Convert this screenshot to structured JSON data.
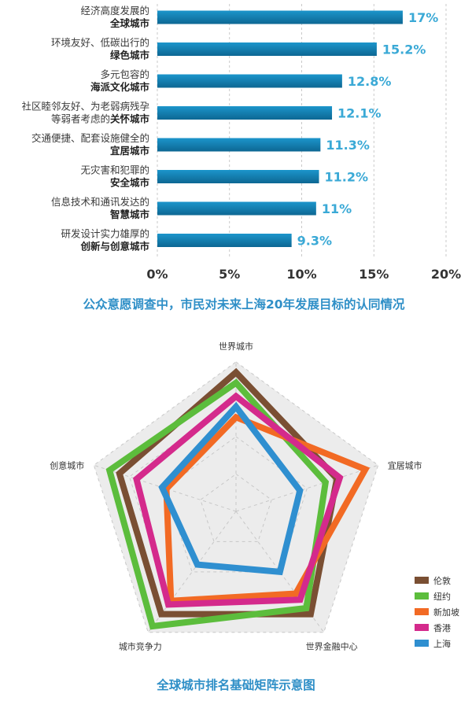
{
  "chart_data": [
    {
      "type": "bar",
      "orientation": "horizontal",
      "title": "公众意愿调查中，市民对未来上海20年发展目标的认同情况",
      "categories": [
        {
          "line1": "经济高度发展的",
          "line2_pre": "",
          "line2_bold": "全球城市"
        },
        {
          "line1": "环境友好、低碳出行的",
          "line2_pre": "",
          "line2_bold": "绿色城市"
        },
        {
          "line1": "多元包容的",
          "line2_pre": "",
          "line2_bold": "海派文化城市"
        },
        {
          "line1": "社区睦邻友好、为老弱病残孕",
          "line2_pre": "等弱者考虑的",
          "line2_bold": "关怀城市"
        },
        {
          "line1": "交通便捷、配套设施健全的",
          "line2_pre": "",
          "line2_bold": "宜居城市"
        },
        {
          "line1": "无灾害和犯罪的",
          "line2_pre": "",
          "line2_bold": "安全城市"
        },
        {
          "line1": "信息技术和通讯发达的",
          "line2_pre": "",
          "line2_bold": "智慧城市"
        },
        {
          "line1": "研发设计实力雄厚的",
          "line2_pre": "",
          "line2_bold": "创新与创意城市"
        }
      ],
      "values": [
        17,
        15.2,
        12.8,
        12.1,
        11.3,
        11.2,
        11,
        9.3
      ],
      "value_labels": [
        "17%",
        "15.2%",
        "12.8%",
        "12.1%",
        "11.3%",
        "11.2%",
        "11%",
        "9.3%"
      ],
      "xlim": [
        0,
        20
      ],
      "xticks": [
        "0%",
        "5%",
        "10%",
        "15%",
        "20%"
      ],
      "grid": true,
      "colors": {
        "bar_top": "#1a8ec4",
        "bar_bottom": "#0f6e9c",
        "label": "#3aa9d6",
        "title": "#2f8fc7",
        "grid": "#bcbcbc"
      }
    },
    {
      "type": "radar",
      "title": "全球城市排名基础矩阵示意图",
      "axes": [
        "世界城市",
        "宜居城市",
        "世界金融中心",
        "城市竞争力",
        "创意城市"
      ],
      "rmax": 10,
      "rings": 4,
      "legend_position": "bottom-right",
      "series": [
        {
          "name": "伦敦",
          "color": "#7a4f33",
          "values": [
            9.3,
            7.1,
            8.5,
            8.5,
            8.2
          ]
        },
        {
          "name": "纽约",
          "color": "#5cbd3c",
          "values": [
            8.6,
            6.3,
            8.0,
            9.5,
            8.9
          ]
        },
        {
          "name": "新加坡",
          "color": "#f26a24",
          "values": [
            6.3,
            9.1,
            6.8,
            7.4,
            4.9
          ]
        },
        {
          "name": "香港",
          "color": "#d42a8c",
          "values": [
            7.7,
            7.3,
            7.3,
            7.7,
            7.0
          ]
        },
        {
          "name": "上海",
          "color": "#2f8fd0",
          "values": [
            7.0,
            4.5,
            5.0,
            4.4,
            5.2
          ]
        }
      ],
      "colors": {
        "bg": "#ececec",
        "ring": "#c8c8c8"
      }
    }
  ]
}
